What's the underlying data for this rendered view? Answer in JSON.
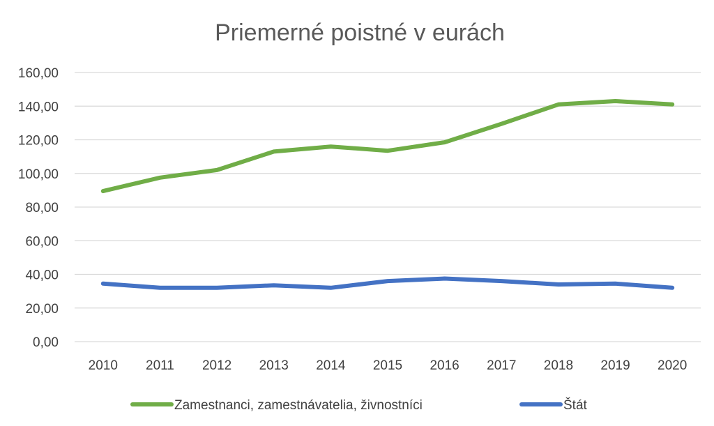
{
  "chart_data": {
    "type": "line",
    "title": "Priemerné poistné v eurách",
    "xlabel": "",
    "ylabel": "",
    "categories": [
      "2010",
      "2011",
      "2012",
      "2013",
      "2014",
      "2015",
      "2016",
      "2017",
      "2018",
      "2019",
      "2020"
    ],
    "y_tick_labels": [
      "0,00",
      "20,00",
      "40,00",
      "60,00",
      "80,00",
      "100,00",
      "120,00",
      "140,00",
      "160,00"
    ],
    "ylim": [
      0,
      160
    ],
    "grid": true,
    "legend_position": "bottom",
    "series": [
      {
        "name": "Zamestnanci, zamestnávatelia, živnostníci",
        "color": "#70ad47",
        "values": [
          89.5,
          97.5,
          102,
          113,
          116,
          113.5,
          118.5,
          129.5,
          141,
          143,
          141
        ]
      },
      {
        "name": "Štát",
        "color": "#4472c4",
        "values": [
          34.5,
          32,
          32,
          33.5,
          32,
          36,
          37.5,
          36,
          34,
          34.5,
          32
        ]
      }
    ]
  }
}
